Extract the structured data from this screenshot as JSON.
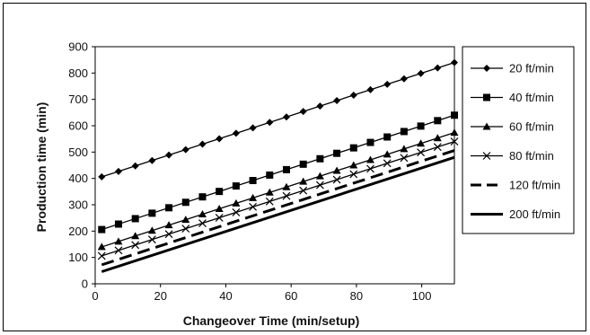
{
  "chart_data": {
    "type": "line",
    "title": "",
    "xlabel": "Changeover Time  (min/setup)",
    "ylabel": "Production time (min)",
    "xlim": [
      0,
      110
    ],
    "ylim": [
      0,
      900
    ],
    "x_ticks": [
      "0",
      "20",
      "40",
      "60",
      "80",
      "100"
    ],
    "y_ticks": [
      "0",
      "100",
      "200",
      "300",
      "400",
      "500",
      "600",
      "700",
      "800",
      "900"
    ],
    "grid": false,
    "legend_position": "right",
    "line_color": "#000000",
    "series": [
      {
        "name": "20 ft/min",
        "marker": "diamond",
        "dash": "solid",
        "width": 1.3,
        "start": [
          2,
          406
        ],
        "end": [
          110,
          840
        ]
      },
      {
        "name": "40 ft/min",
        "marker": "square",
        "dash": "solid",
        "width": 1.3,
        "start": [
          2,
          206
        ],
        "end": [
          110,
          640
        ]
      },
      {
        "name": "60 ft/min",
        "marker": "triangle",
        "dash": "solid",
        "width": 1.3,
        "start": [
          2,
          140
        ],
        "end": [
          110,
          574
        ]
      },
      {
        "name": "80 ft/min",
        "marker": "x",
        "dash": "solid",
        "width": 1.3,
        "start": [
          2,
          106
        ],
        "end": [
          110,
          540
        ]
      },
      {
        "name": "120 ft/min",
        "marker": "none",
        "dash": "long-dash",
        "width": 3,
        "start": [
          2,
          72
        ],
        "end": [
          110,
          506
        ]
      },
      {
        "name": "200 ft/min",
        "marker": "none",
        "dash": "solid",
        "width": 3,
        "start": [
          2,
          46
        ],
        "end": [
          110,
          480
        ]
      }
    ]
  }
}
